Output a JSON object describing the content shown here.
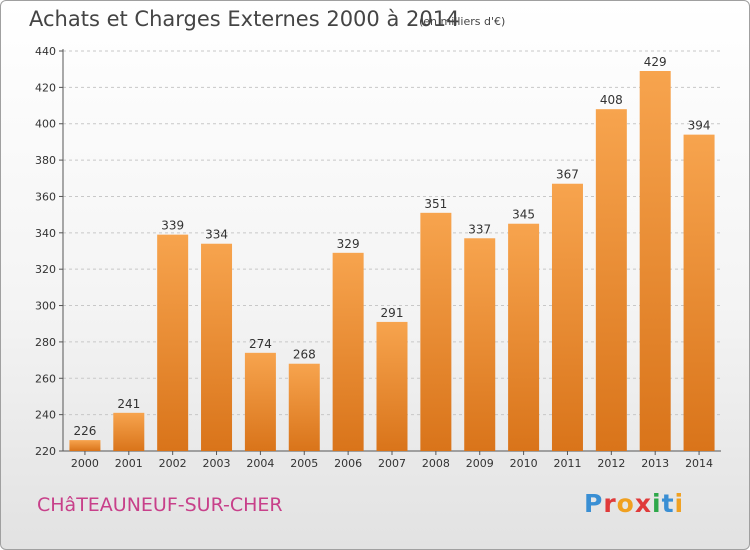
{
  "chart_data": {
    "type": "bar",
    "title": "Achats et Charges Externes 2000 à 2014",
    "unit": "(en milliers d'€)",
    "categories": [
      "2000",
      "2001",
      "2002",
      "2003",
      "2004",
      "2005",
      "2006",
      "2007",
      "2008",
      "2009",
      "2010",
      "2011",
      "2012",
      "2013",
      "2014"
    ],
    "values": [
      226,
      241,
      339,
      334,
      274,
      268,
      329,
      291,
      351,
      337,
      345,
      367,
      408,
      429,
      394
    ],
    "ylim": [
      220,
      440
    ],
    "yticks": [
      220,
      240,
      260,
      280,
      300,
      320,
      340,
      360,
      380,
      400,
      420,
      440
    ],
    "grid": true,
    "bar_color": "#f39c43"
  },
  "footer": {
    "commune": "CHâTEAUNEUF-SUR-CHER",
    "logo_text": "Proxiti"
  }
}
